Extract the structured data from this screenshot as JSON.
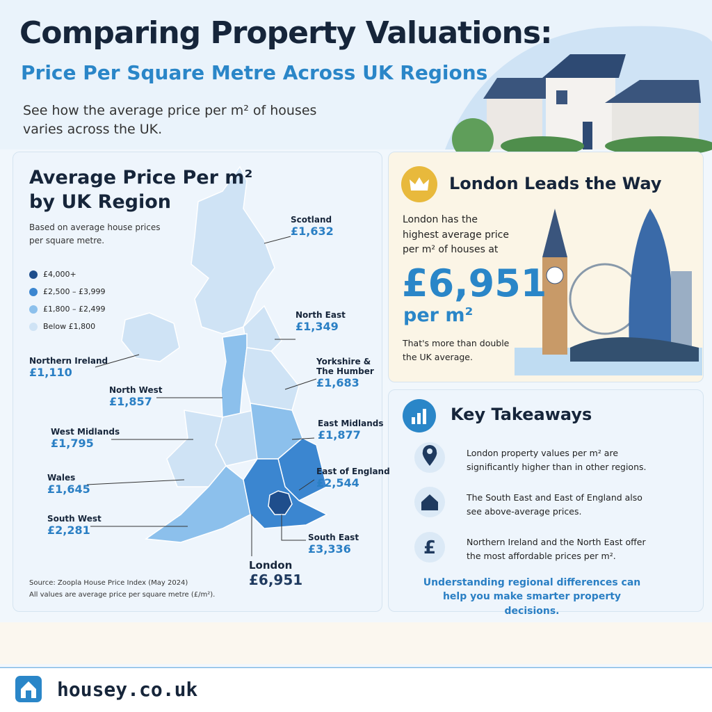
{
  "header": {
    "title": "Comparing Property Valuations:",
    "subtitle": "Price Per Square Metre Across UK Regions",
    "intro": "See how the average price per m² of houses varies across the UK."
  },
  "map_panel": {
    "title": [
      "Average Price Per m²",
      "by UK Region"
    ],
    "note": "Based on average house prices per square metre.",
    "legend": [
      "£4,000+",
      "£2,500 – £3,999",
      "£1,800 – £2,499",
      "Below £1,800"
    ],
    "regions": [
      {
        "name": "Scotland",
        "price": "£1,632"
      },
      {
        "name": "North East",
        "price": "£1,349"
      },
      {
        "name": "Northern Ireland",
        "price": "£1,110"
      },
      {
        "name": "Yorkshire & The Humber",
        "price": "£1,683"
      },
      {
        "name": "North West",
        "price": "£1,857"
      },
      {
        "name": "West Midlands",
        "price": "£1,795"
      },
      {
        "name": "East Midlands",
        "price": "£1,877"
      },
      {
        "name": "Wales",
        "price": "£1,645"
      },
      {
        "name": "East of England",
        "price": "£2,544"
      },
      {
        "name": "South West",
        "price": "£2,281"
      },
      {
        "name": "South East",
        "price": "£3,336"
      },
      {
        "name": "London",
        "price": "£6,951"
      }
    ],
    "source": [
      "Source: Zoopla House Price Index (May 2024)",
      "All values are average price per square metre (£/m²)."
    ]
  },
  "london_panel": {
    "title": "London Leads the Way",
    "text": "London has the highest average price per m² of houses at",
    "price": "£6,951",
    "unit": "per m²",
    "note": "That's more than double the UK average."
  },
  "takeaways": {
    "title": "Key Takeaways",
    "items": [
      "London property values per m² are significantly higher than in other regions.",
      "The South East and East of England also see above-average prices.",
      "Northern Ireland and the North East offer the most affordable prices per m²."
    ],
    "footer": "Understanding regional differences can help you make smarter property decisions."
  },
  "brand": "housey.co.uk"
}
